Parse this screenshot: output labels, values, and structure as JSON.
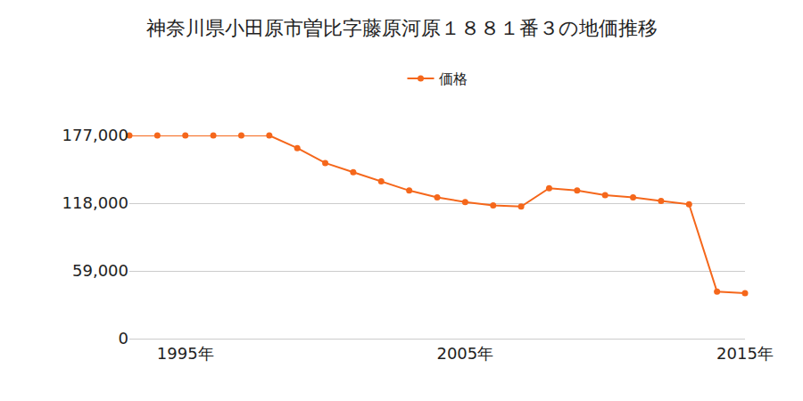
{
  "chart_data": {
    "type": "line",
    "title": "神奈川県小田原市曽比字藤原河原１８８１番３の地価推移",
    "x": [
      1993,
      1994,
      1995,
      1996,
      1997,
      1998,
      1999,
      2000,
      2001,
      2002,
      2003,
      2004,
      2005,
      2006,
      2007,
      2008,
      2009,
      2010,
      2011,
      2012,
      2013,
      2014,
      2015
    ],
    "series": [
      {
        "name": "価格",
        "color": "#f5671b",
        "marker": "circle",
        "values": [
          177000,
          177000,
          177000,
          177000,
          177000,
          177000,
          166000,
          153000,
          145000,
          137000,
          129000,
          123000,
          119000,
          116000,
          115000,
          131000,
          129000,
          125000,
          123000,
          120000,
          117000,
          41000,
          39500
        ]
      }
    ],
    "xlim": [
      1993,
      2015
    ],
    "xticks": [
      {
        "value": 1995,
        "label": "1995年"
      },
      {
        "value": 2005,
        "label": "2005年"
      },
      {
        "value": 2015,
        "label": "2015年"
      }
    ],
    "ylim": [
      0,
      177000
    ],
    "yticks": [
      0,
      {
        "value": 59000,
        "label": "59,000"
      },
      {
        "value": 118000,
        "label": "118,000"
      },
      {
        "value": 177000,
        "label": "177,000"
      }
    ],
    "grid": true,
    "legend": "top"
  }
}
